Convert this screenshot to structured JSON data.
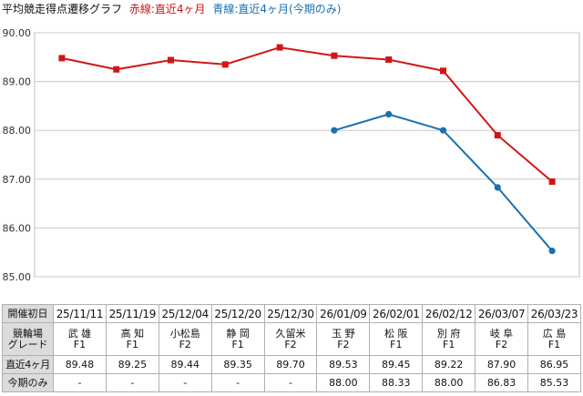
{
  "title": {
    "main": "平均競走得点遷移グラフ",
    "red_legend": "赤線:直近4ヶ月",
    "blue_legend": "青線:直近4ヶ月(今期のみ)"
  },
  "colors": {
    "red": "#d01616",
    "blue": "#1a6fb0"
  },
  "chart_data": {
    "type": "line",
    "categories": [
      "25/11/11",
      "25/11/19",
      "25/12/04",
      "25/12/20",
      "25/12/30",
      "26/01/09",
      "26/02/01",
      "26/02/12",
      "26/03/07",
      "26/03/23"
    ],
    "ylim": [
      85.0,
      90.0
    ],
    "yticks": [
      "85.00",
      "86.00",
      "87.00",
      "88.00",
      "89.00",
      "90.00"
    ],
    "series": [
      {
        "key": "red",
        "marker": "square",
        "values": [
          89.48,
          89.25,
          89.44,
          89.35,
          89.7,
          89.53,
          89.45,
          89.22,
          87.9,
          86.95
        ]
      },
      {
        "key": "blue",
        "marker": "circle",
        "values": [
          null,
          null,
          null,
          null,
          null,
          88.0,
          88.33,
          88.0,
          86.83,
          85.53
        ]
      }
    ],
    "grid": "horizontal"
  },
  "table": {
    "row_headers": {
      "date": "開催初日",
      "venue_line1": "競輪場",
      "venue_line2": "グレード",
      "recent": "直近4ヶ月",
      "season": "今期のみ"
    },
    "dates": [
      "25/11/11",
      "25/11/19",
      "25/12/04",
      "25/12/20",
      "25/12/30",
      "26/01/09",
      "26/02/01",
      "26/02/12",
      "26/03/07",
      "26/03/23"
    ],
    "venues": [
      "武 雄",
      "高 知",
      "小松島",
      "静 岡",
      "久留米",
      "玉 野",
      "松 阪",
      "別 府",
      "岐 阜",
      "広 島"
    ],
    "grades": [
      "F1",
      "F1",
      "F2",
      "F1",
      "F2",
      "F2",
      "F1",
      "F1",
      "F2",
      "F1"
    ],
    "recent": [
      "89.48",
      "89.25",
      "89.44",
      "89.35",
      "89.70",
      "89.53",
      "89.45",
      "89.22",
      "87.90",
      "86.95"
    ],
    "season": [
      "-",
      "-",
      "-",
      "-",
      "-",
      "88.00",
      "88.33",
      "88.00",
      "86.83",
      "85.53"
    ]
  }
}
